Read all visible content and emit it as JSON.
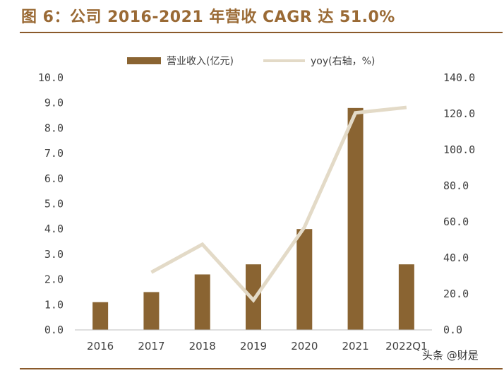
{
  "title": "图 6：公司 2016-2021 年营收 CAGR 达 51.0%",
  "watermark": "头条 @财是",
  "chart_data": {
    "type": "bar",
    "categories": [
      "2016",
      "2017",
      "2018",
      "2019",
      "2020",
      "2021",
      "2022Q1"
    ],
    "series": [
      {
        "name": "营业收入(亿元)",
        "type": "bar",
        "axis": "left",
        "color": "#8a6432",
        "values": [
          1.1,
          1.5,
          2.2,
          2.6,
          4.0,
          8.8,
          2.6
        ]
      },
      {
        "name": "yoy(右轴，%)",
        "type": "line",
        "axis": "right",
        "color": "#e3dac7",
        "values": [
          null,
          32.0,
          47.5,
          16.5,
          57.0,
          120.5,
          123.5
        ]
      }
    ],
    "y_left": {
      "min": 0,
      "max": 10,
      "ticks": [
        "0.0",
        "1.0",
        "2.0",
        "3.0",
        "4.0",
        "5.0",
        "6.0",
        "7.0",
        "8.0",
        "9.0",
        "10.0"
      ]
    },
    "y_right": {
      "min": 0,
      "max": 140,
      "ticks": [
        "0.0",
        "20.0",
        "40.0",
        "60.0",
        "80.0",
        "100.0",
        "120.0",
        "140.0"
      ]
    },
    "legend_position": "top-center",
    "grid": false
  }
}
